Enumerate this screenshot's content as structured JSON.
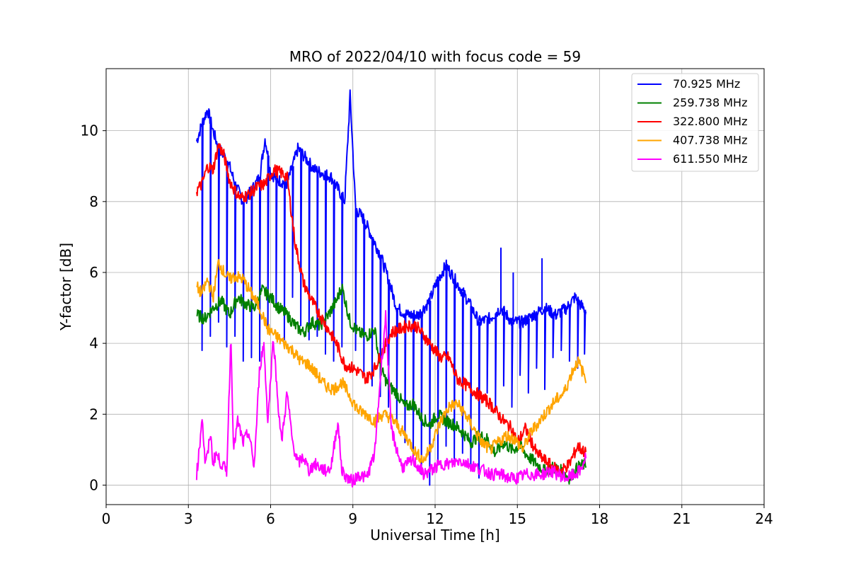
{
  "chart_data": {
    "type": "line",
    "title": "MRO of 2022/04/10 with focus code = 59",
    "xlabel": "Universal Time [h]",
    "ylabel": "Y-factor [dB]",
    "xlim": [
      0,
      24
    ],
    "ylim": [
      -0.55,
      11.75
    ],
    "xticks": [
      0,
      3,
      6,
      9,
      12,
      15,
      18,
      21,
      24
    ],
    "yticks": [
      0,
      2,
      4,
      6,
      8,
      10
    ],
    "grid": true,
    "legend_position": "top-right",
    "series": [
      {
        "name": " 70.925 MHz",
        "color": "#0000ff",
        "x": [
          3.3,
          3.5,
          3.7,
          3.9,
          4.1,
          4.3,
          4.5,
          4.7,
          5.0,
          5.3,
          5.6,
          5.8,
          6.0,
          6.3,
          6.6,
          7.0,
          7.3,
          7.6,
          7.9,
          8.2,
          8.5,
          8.7,
          8.9,
          9.1,
          9.4,
          9.7,
          10.0,
          10.3,
          10.6,
          11.0,
          11.4,
          11.8,
          12.1,
          12.4,
          12.8,
          13.2,
          13.6,
          14.0,
          14.4,
          14.8,
          15.2,
          15.6,
          16.0,
          16.4,
          16.8,
          17.1,
          17.5
        ],
        "y": [
          9.7,
          10.2,
          10.6,
          10.0,
          9.5,
          9.3,
          9.0,
          8.5,
          8.0,
          8.3,
          8.7,
          9.8,
          8.8,
          8.6,
          8.5,
          9.5,
          9.2,
          8.9,
          8.8,
          8.7,
          8.3,
          8.0,
          11.0,
          7.8,
          7.5,
          7.0,
          6.5,
          5.8,
          5.0,
          4.8,
          4.8,
          5.2,
          5.8,
          6.2,
          5.7,
          5.2,
          4.6,
          4.7,
          5.0,
          4.6,
          4.6,
          4.8,
          5.0,
          4.8,
          5.0,
          5.3,
          4.9
        ],
        "dips": [
          3.5,
          3.8,
          4.1,
          4.4,
          4.7,
          5.0,
          5.3,
          5.6,
          5.9,
          6.2,
          6.5,
          6.8,
          7.1,
          7.4,
          7.7,
          8.0,
          8.3,
          8.6,
          9.1,
          9.4,
          9.7,
          10.0,
          10.3,
          10.6,
          10.9,
          11.2,
          11.5,
          11.8,
          12.1,
          12.4,
          12.7,
          13.0,
          13.3,
          13.6,
          13.9,
          14.2,
          14.5,
          14.8,
          15.1,
          15.4,
          15.7,
          16.0,
          16.3,
          16.6,
          16.9,
          17.2,
          17.45
        ],
        "dip_depths": [
          3.8,
          4.2,
          4.6,
          3.9,
          4.2,
          3.5,
          3.6,
          3.5,
          4.3,
          5.0,
          4.1,
          5.3,
          4.5,
          4.1,
          4.2,
          3.7,
          3.5,
          3.9,
          3.8,
          3.2,
          2.8,
          2.5,
          2.2,
          1.8,
          1.2,
          0.8,
          0.3,
          0.0,
          0.6,
          1.1,
          0.7,
          0.9,
          0.6,
          0.2,
          2.6,
          2.1,
          2.8,
          2.2,
          3.1,
          2.6,
          3.3,
          2.7,
          3.6,
          3.8,
          3.5,
          3.3,
          3.7
        ],
        "spikes": [
          [
            14.4,
            6.7
          ],
          [
            14.85,
            6.0
          ],
          [
            15.9,
            6.4
          ]
        ]
      },
      {
        "name": "259.738 MHz",
        "color": "#008000",
        "x": [
          3.3,
          3.6,
          3.9,
          4.2,
          4.5,
          4.8,
          5.1,
          5.4,
          5.7,
          6.0,
          6.3,
          6.6,
          6.9,
          7.2,
          7.5,
          7.8,
          8.1,
          8.4,
          8.6,
          8.9,
          9.2,
          9.5,
          9.8,
          10.0,
          10.3,
          10.6,
          10.9,
          11.2,
          11.5,
          11.8,
          12.1,
          12.4,
          12.7,
          13.0,
          13.3,
          13.6,
          13.9,
          14.2,
          14.5,
          14.8,
          15.1,
          15.4,
          15.7,
          16.0,
          16.3,
          16.6,
          16.9,
          17.2,
          17.5
        ],
        "y": [
          4.8,
          4.7,
          5.0,
          5.2,
          4.8,
          5.3,
          5.1,
          5.0,
          5.5,
          5.3,
          5.0,
          4.8,
          4.5,
          4.3,
          4.6,
          4.5,
          4.8,
          5.2,
          5.6,
          4.6,
          4.3,
          4.2,
          4.4,
          3.3,
          2.8,
          2.6,
          2.2,
          2.3,
          1.9,
          1.7,
          2.0,
          1.8,
          1.7,
          1.5,
          1.2,
          1.4,
          1.3,
          0.9,
          1.2,
          1.0,
          1.1,
          0.8,
          0.6,
          0.4,
          0.5,
          0.4,
          0.2,
          0.5,
          0.6
        ]
      },
      {
        "name": "322.800 MHz",
        "color": "#ff0000",
        "x": [
          3.3,
          3.5,
          3.7,
          3.9,
          4.1,
          4.3,
          4.5,
          4.7,
          4.9,
          5.2,
          5.5,
          5.8,
          6.1,
          6.4,
          6.6,
          6.9,
          7.2,
          7.5,
          7.8,
          8.1,
          8.4,
          8.7,
          9.0,
          9.2,
          9.5,
          9.8,
          10.1,
          10.4,
          10.7,
          11.0,
          11.3,
          11.6,
          11.9,
          12.2,
          12.5,
          12.8,
          13.0,
          13.5,
          14.0,
          14.5,
          14.8,
          15.0,
          15.3,
          15.7,
          16.0,
          16.3,
          16.6,
          16.9,
          17.2,
          17.5
        ],
        "y": [
          8.3,
          8.5,
          9.0,
          8.9,
          9.6,
          9.3,
          8.6,
          8.3,
          8.1,
          8.2,
          8.4,
          8.5,
          8.9,
          8.8,
          8.7,
          6.8,
          5.7,
          5.2,
          4.8,
          4.4,
          4.0,
          3.4,
          3.3,
          3.2,
          3.0,
          3.3,
          3.8,
          4.3,
          4.4,
          4.5,
          4.5,
          4.2,
          3.9,
          3.6,
          3.6,
          3.0,
          2.9,
          2.6,
          2.3,
          1.8,
          1.6,
          1.2,
          1.6,
          0.9,
          0.7,
          0.5,
          0.4,
          0.6,
          1.1,
          0.9
        ]
      },
      {
        "name": "407.738 MHz",
        "color": "#ffa500",
        "x": [
          3.3,
          3.5,
          3.7,
          3.9,
          4.1,
          4.3,
          4.5,
          4.7,
          5.0,
          5.3,
          5.6,
          5.9,
          6.2,
          6.5,
          6.8,
          7.1,
          7.4,
          7.7,
          8.0,
          8.3,
          8.6,
          8.9,
          9.2,
          9.5,
          9.8,
          10.1,
          10.4,
          10.7,
          11.0,
          11.3,
          11.6,
          11.9,
          12.2,
          12.5,
          12.8,
          13.1,
          13.4,
          13.7,
          14.0,
          14.3,
          14.6,
          14.9,
          15.2,
          15.5,
          15.8,
          16.1,
          16.4,
          16.7,
          17.0,
          17.2,
          17.5
        ],
        "y": [
          5.6,
          5.4,
          5.8,
          5.3,
          6.3,
          6.0,
          5.8,
          5.9,
          5.8,
          5.4,
          5.0,
          4.4,
          4.2,
          4.0,
          3.8,
          3.5,
          3.4,
          3.1,
          2.8,
          2.7,
          2.9,
          2.5,
          2.1,
          2.0,
          1.8,
          2.0,
          1.9,
          1.6,
          1.3,
          0.9,
          0.7,
          1.2,
          1.8,
          2.2,
          2.3,
          2.0,
          1.6,
          1.2,
          1.0,
          1.2,
          1.4,
          1.3,
          1.0,
          1.5,
          1.8,
          2.1,
          2.4,
          2.6,
          3.2,
          3.5,
          3.0
        ]
      },
      {
        "name": "611.550 MHz",
        "color": "#ff00ff",
        "x": [
          3.3,
          3.4,
          3.5,
          3.6,
          3.7,
          3.8,
          3.9,
          4.0,
          4.2,
          4.4,
          4.55,
          4.65,
          4.8,
          5.0,
          5.2,
          5.4,
          5.6,
          5.75,
          5.9,
          6.1,
          6.25,
          6.4,
          6.6,
          6.8,
          7.0,
          7.2,
          7.4,
          7.6,
          7.8,
          8.0,
          8.2,
          8.45,
          8.6,
          8.8,
          9.0,
          9.2,
          9.5,
          9.8,
          10.0,
          10.2,
          10.4,
          10.6,
          10.8,
          11.0,
          11.2,
          11.4,
          11.6,
          11.8,
          12.0,
          12.3,
          12.6,
          12.9,
          13.2,
          13.5,
          13.8,
          14.1,
          14.4,
          14.7,
          15.0,
          15.3,
          15.6,
          15.9,
          16.2,
          16.5,
          16.8,
          17.1,
          17.3,
          17.5
        ],
        "y": [
          0.3,
          1.0,
          2.0,
          0.7,
          0.8,
          1.5,
          0.6,
          0.9,
          0.6,
          0.4,
          4.2,
          1.0,
          1.8,
          1.2,
          1.5,
          0.5,
          3.3,
          4.0,
          1.8,
          4.2,
          2.5,
          1.2,
          2.6,
          1.2,
          0.6,
          0.8,
          0.4,
          0.6,
          0.5,
          0.4,
          0.5,
          1.8,
          0.4,
          0.2,
          0.1,
          0.3,
          0.2,
          0.9,
          3.0,
          4.8,
          1.6,
          1.0,
          0.5,
          0.6,
          0.7,
          0.5,
          0.3,
          0.4,
          0.5,
          0.6,
          0.6,
          0.7,
          0.6,
          0.5,
          0.4,
          0.3,
          0.3,
          0.2,
          0.2,
          0.3,
          0.3,
          0.3,
          0.4,
          0.3,
          0.2,
          0.3,
          0.4,
          0.8
        ]
      }
    ]
  }
}
